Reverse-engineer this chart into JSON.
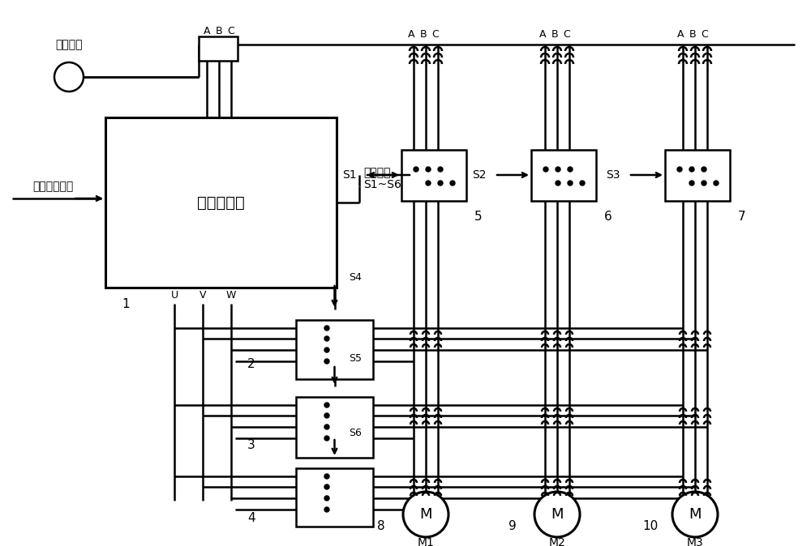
{
  "bg_color": "#ffffff",
  "line_color": "#000000",
  "lw_thin": 1.2,
  "lw_mid": 1.8,
  "lw_thick": 2.2,
  "figsize": [
    10.0,
    6.74
  ],
  "dpi": 100,
  "texts": {
    "grid": "三相电网",
    "feedback": "压力信号反馈",
    "vfd": "变频控制器",
    "ctrl_sig": "控制信号",
    "ctrl_range": "S1~S6",
    "uvw": [
      "U",
      "V",
      "W"
    ],
    "abc": "A B C",
    "s_labels": [
      "S1",
      "S2",
      "S3",
      "S4",
      "S5",
      "S6"
    ],
    "nums": [
      "1",
      "2",
      "3",
      "4",
      "5",
      "6",
      "7",
      "8",
      "9",
      "10"
    ],
    "motor_M": "M",
    "motor_names": [
      "M1",
      "M2",
      "M3"
    ]
  }
}
